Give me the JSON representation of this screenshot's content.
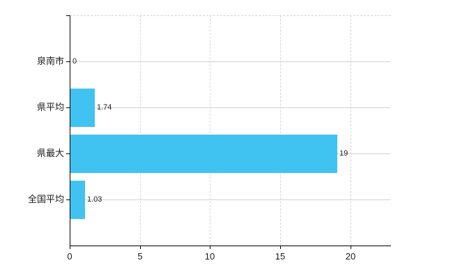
{
  "chart_data": {
    "type": "bar",
    "orientation": "horizontal",
    "title": "",
    "xlabel": "",
    "ylabel": "",
    "categories": [
      "泉南市",
      "県平均",
      "県最大",
      "全国平均"
    ],
    "values": [
      0,
      1.74,
      19,
      1.03
    ],
    "value_labels": [
      "0",
      "1.74",
      "19",
      "1.03"
    ],
    "x_ticks": [
      0,
      5,
      10,
      15,
      20
    ],
    "xlim": [
      0,
      22.83
    ],
    "grid": "on",
    "legend": "none",
    "colors": {
      "bar": "#41c3f1",
      "h_grid": "#ccd5cc",
      "v_grid": "#d4d4d4",
      "axis": "#000000",
      "text": "#1a1a1a"
    }
  }
}
